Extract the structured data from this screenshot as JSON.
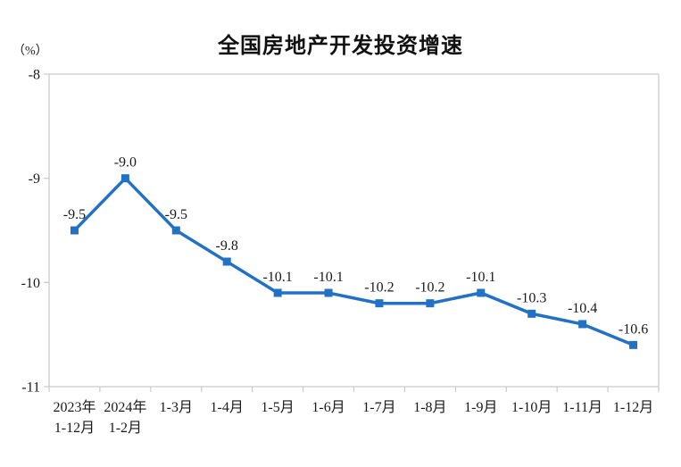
{
  "chart_data": {
    "type": "line",
    "title": "全国房地产开发投资增速",
    "unit_label": "（%）",
    "categories": [
      [
        "2023年",
        "1-12月"
      ],
      [
        "2024年",
        "1-2月"
      ],
      [
        "1-3月"
      ],
      [
        "1-4月"
      ],
      [
        "1-5月"
      ],
      [
        "1-6月"
      ],
      [
        "1-7月"
      ],
      [
        "1-8月"
      ],
      [
        "1-9月"
      ],
      [
        "1-10月"
      ],
      [
        "1-11月"
      ],
      [
        "1-12月"
      ]
    ],
    "values": [
      -9.5,
      -9.0,
      -9.5,
      -9.8,
      -10.1,
      -10.1,
      -10.2,
      -10.2,
      -10.1,
      -10.3,
      -10.4,
      -10.6
    ],
    "data_labels": [
      "-9.5",
      "-9.0",
      "-9.5",
      "-9.8",
      "-10.1",
      "-10.1",
      "-10.2",
      "-10.2",
      "-10.1",
      "-10.3",
      "-10.4",
      "-10.6"
    ],
    "ylim_top": -8,
    "ylim_bottom": -11,
    "yticks": [
      "-8",
      "-9",
      "-10",
      "-11"
    ],
    "grid": false,
    "legend": "none",
    "colors": {
      "line": "#2271C5",
      "marker": "#2271C5",
      "axis": "#C9C9C9",
      "text": "#1A1A1A",
      "title": "#111111",
      "background": "#FFFFFF"
    }
  }
}
